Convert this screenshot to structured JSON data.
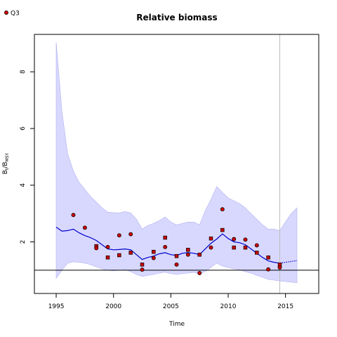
{
  "chart_data": {
    "type": "line",
    "title": "Relative biomass",
    "xlabel": "Time",
    "ylabel_main": "B",
    "ylabel_sub1": "t",
    "ylabel_mid": "/B",
    "ylabel_sub2": "MSY",
    "xlim": [
      1993.1,
      2017.9
    ],
    "ylim": [
      0.18,
      9.32
    ],
    "xticks": [
      1995,
      2000,
      2005,
      2010,
      2015
    ],
    "yticks": [
      2,
      4,
      6,
      8
    ],
    "reference_line_y": 1.0,
    "vertical_marker_x": 2014.5,
    "legend": {
      "label": "Q3",
      "placement": "top-left"
    },
    "colors": {
      "band": "#d8d8ff",
      "band_edge": "#b0b0f0",
      "line": "#0000cc",
      "points_fill": "#cc0000",
      "points_stroke": "#000000",
      "ref_line": "#000000",
      "marker_line": "#bbbbbb"
    },
    "ci_x": [
      1995,
      1995.5,
      1996,
      1996.5,
      1997,
      1997.5,
      1998,
      1998.5,
      1999,
      1999.5,
      2000,
      2000.5,
      2001,
      2001.5,
      2002,
      2002.5,
      2003,
      2003.5,
      2004,
      2004.5,
      2005,
      2005.5,
      2006,
      2006.5,
      2007,
      2007.5,
      2008,
      2008.5,
      2009,
      2009.5,
      2010,
      2010.5,
      2011,
      2011.5,
      2012,
      2012.5,
      2013,
      2013.5,
      2014,
      2014.5,
      2015,
      2015.5,
      2016
    ],
    "ci_upper": [
      9.05,
      6.6,
      5.1,
      4.5,
      4.1,
      3.85,
      3.6,
      3.4,
      3.2,
      3.05,
      3.03,
      3.02,
      3.07,
      3.02,
      2.8,
      2.45,
      2.58,
      2.65,
      2.75,
      2.88,
      2.7,
      2.6,
      2.65,
      2.7,
      2.7,
      2.6,
      3.1,
      3.5,
      3.95,
      3.75,
      3.55,
      3.45,
      3.35,
      3.2,
      3.0,
      2.8,
      2.6,
      2.45,
      2.45,
      2.4,
      2.7,
      3.0,
      3.2
    ],
    "ci_lower": [
      0.72,
      1.0,
      1.25,
      1.3,
      1.28,
      1.25,
      1.2,
      1.12,
      1.05,
      1.0,
      0.98,
      1.0,
      1.02,
      0.95,
      0.85,
      0.78,
      0.82,
      0.85,
      0.9,
      0.93,
      0.88,
      0.85,
      0.88,
      0.9,
      0.92,
      0.88,
      0.95,
      1.1,
      1.25,
      1.15,
      1.1,
      1.05,
      1.02,
      0.95,
      0.9,
      0.82,
      0.75,
      0.68,
      0.65,
      0.62,
      0.6,
      0.58,
      0.56
    ],
    "estimate_x": [
      1995,
      1995.5,
      1996,
      1996.5,
      1997,
      1997.5,
      1998,
      1998.5,
      1999,
      1999.5,
      2000,
      2000.5,
      2001,
      2001.5,
      2002,
      2002.5,
      2003,
      2003.5,
      2004,
      2004.5,
      2005,
      2005.5,
      2006,
      2006.5,
      2007,
      2007.5,
      2008,
      2008.5,
      2009,
      2009.5,
      2010,
      2010.5,
      2011,
      2011.5,
      2012,
      2012.5,
      2013,
      2013.5,
      2014,
      2014.5
    ],
    "estimate_y": [
      2.52,
      2.38,
      2.4,
      2.45,
      2.32,
      2.22,
      2.15,
      2.05,
      1.9,
      1.75,
      1.72,
      1.73,
      1.75,
      1.72,
      1.55,
      1.38,
      1.45,
      1.5,
      1.58,
      1.62,
      1.55,
      1.52,
      1.6,
      1.62,
      1.6,
      1.55,
      1.75,
      1.95,
      2.1,
      2.28,
      2.12,
      2.0,
      1.97,
      1.9,
      1.75,
      1.6,
      1.45,
      1.33,
      1.28,
      1.25
    ],
    "forecast_x": [
      2014.5,
      2015,
      2015.5,
      2016
    ],
    "forecast_y": [
      1.25,
      1.28,
      1.31,
      1.34
    ],
    "observations": [
      {
        "x": 1996.5,
        "y": 2.95,
        "shape": "circle"
      },
      {
        "x": 1997.5,
        "y": 2.5,
        "shape": "circle"
      },
      {
        "x": 1998.5,
        "y": 1.85,
        "shape": "square"
      },
      {
        "x": 1998.5,
        "y": 1.78,
        "shape": "circle"
      },
      {
        "x": 1999.5,
        "y": 1.82,
        "shape": "circle"
      },
      {
        "x": 1999.5,
        "y": 1.45,
        "shape": "square"
      },
      {
        "x": 2000.5,
        "y": 2.23,
        "shape": "circle"
      },
      {
        "x": 2000.5,
        "y": 1.53,
        "shape": "square"
      },
      {
        "x": 2001.5,
        "y": 2.27,
        "shape": "circle"
      },
      {
        "x": 2001.5,
        "y": 1.62,
        "shape": "square"
      },
      {
        "x": 2002.5,
        "y": 1.2,
        "shape": "square"
      },
      {
        "x": 2002.5,
        "y": 1.02,
        "shape": "circle"
      },
      {
        "x": 2003.5,
        "y": 1.65,
        "shape": "square"
      },
      {
        "x": 2003.5,
        "y": 1.43,
        "shape": "circle"
      },
      {
        "x": 2004.5,
        "y": 2.15,
        "shape": "square"
      },
      {
        "x": 2004.5,
        "y": 1.82,
        "shape": "circle"
      },
      {
        "x": 2005.5,
        "y": 1.5,
        "shape": "square"
      },
      {
        "x": 2005.5,
        "y": 1.2,
        "shape": "circle"
      },
      {
        "x": 2006.5,
        "y": 1.72,
        "shape": "square"
      },
      {
        "x": 2006.5,
        "y": 1.55,
        "shape": "circle"
      },
      {
        "x": 2007.5,
        "y": 1.55,
        "shape": "square"
      },
      {
        "x": 2007.5,
        "y": 0.9,
        "shape": "circle"
      },
      {
        "x": 2008.5,
        "y": 2.12,
        "shape": "square"
      },
      {
        "x": 2008.5,
        "y": 1.8,
        "shape": "circle"
      },
      {
        "x": 2009.5,
        "y": 3.15,
        "shape": "circle"
      },
      {
        "x": 2009.5,
        "y": 2.42,
        "shape": "square"
      },
      {
        "x": 2010.5,
        "y": 2.1,
        "shape": "circle"
      },
      {
        "x": 2010.5,
        "y": 1.8,
        "shape": "square"
      },
      {
        "x": 2011.5,
        "y": 2.08,
        "shape": "circle"
      },
      {
        "x": 2011.5,
        "y": 1.8,
        "shape": "square"
      },
      {
        "x": 2012.5,
        "y": 1.88,
        "shape": "circle"
      },
      {
        "x": 2012.5,
        "y": 1.62,
        "shape": "square"
      },
      {
        "x": 2013.5,
        "y": 1.45,
        "shape": "square"
      },
      {
        "x": 2013.5,
        "y": 1.03,
        "shape": "circle"
      },
      {
        "x": 2014.5,
        "y": 1.2,
        "shape": "square"
      },
      {
        "x": 2014.5,
        "y": 1.1,
        "shape": "circle"
      }
    ]
  }
}
